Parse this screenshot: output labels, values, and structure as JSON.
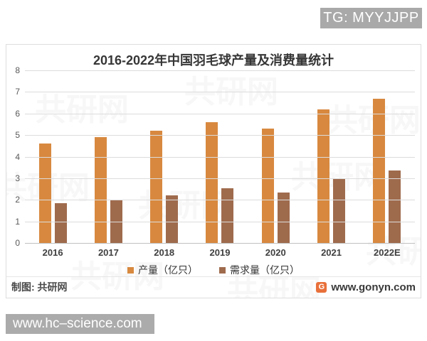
{
  "badges": {
    "tg": "TG: MYYJJPP",
    "site_bar": "www.hc–science.com"
  },
  "chart_data": {
    "type": "bar",
    "title": "2016-2022年中国羽毛球产量及消费量统计",
    "categories": [
      "2016",
      "2017",
      "2018",
      "2019",
      "2020",
      "2021",
      "2022E"
    ],
    "series": [
      {
        "name": "产量（亿只）",
        "color": "#d8893f",
        "values": [
          4.6,
          4.9,
          5.2,
          5.6,
          5.3,
          6.2,
          6.7
        ]
      },
      {
        "name": "需求量（亿只）",
        "color": "#9f6b4d",
        "values": [
          1.85,
          2.0,
          2.2,
          2.55,
          2.35,
          2.95,
          3.35
        ]
      }
    ],
    "ylim": [
      0,
      8
    ],
    "yticks": [
      0,
      1,
      2,
      3,
      4,
      5,
      6,
      7,
      8
    ],
    "grid": true,
    "legend_position": "bottom"
  },
  "footer": {
    "credit": "制图: 共研网",
    "logo_glyph": "G",
    "website": "www.gonyn.com"
  },
  "watermark": {
    "text": "共研网"
  },
  "colors": {
    "production_bar": "#d8893f",
    "demand_bar": "#9f6b4d",
    "badge_gray": "#a9a9a9",
    "gridline": "#dcdcdc",
    "logo_orange": "#e8703a"
  }
}
